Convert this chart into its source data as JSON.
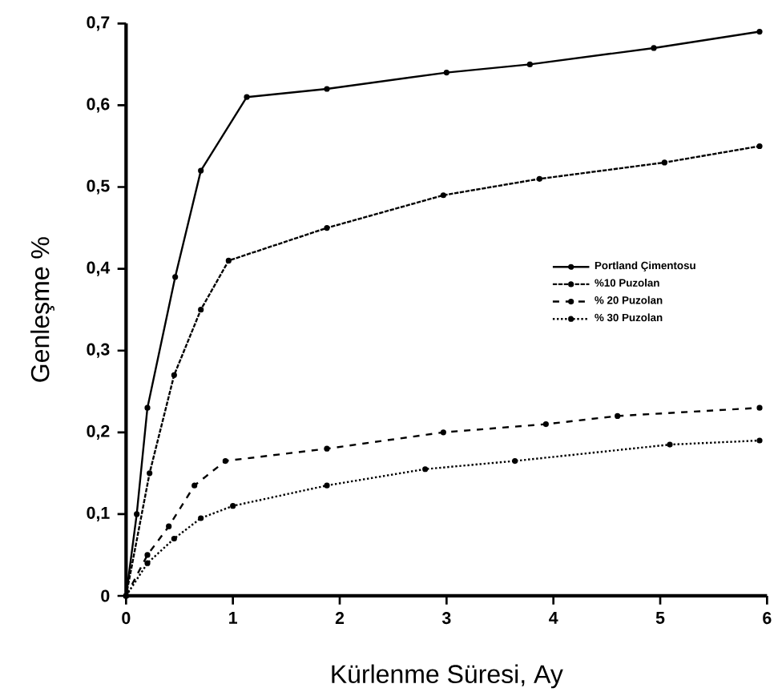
{
  "chart_data": {
    "type": "line",
    "xlabel": "Kürlenme Süresi, Ay",
    "ylabel": "Genleşme %",
    "xlim": [
      0,
      6
    ],
    "xticks": [
      0,
      1,
      2,
      3,
      4,
      5,
      6
    ],
    "ylim": [
      0,
      0.7
    ],
    "yticks": [
      0,
      {
        "value": 0.1,
        "label": "0,1"
      },
      {
        "value": 0.2,
        "label": "0,2"
      },
      {
        "value": 0.3,
        "label": "0,3"
      },
      {
        "value": 0.4,
        "label": "0,4"
      },
      {
        "value": 0.5,
        "label": "0,5"
      },
      {
        "value": 0.6,
        "label": "0,6"
      },
      {
        "value": 0.7,
        "label": "0,7"
      }
    ],
    "grid": false,
    "legend": "right",
    "marker": "circle",
    "series": [
      {
        "name": "Portland Çimentosu",
        "color": "#000000",
        "line_style": "solid",
        "x": [
          0,
          0.1,
          0.2,
          0.46,
          0.7,
          1.13,
          1.88,
          3.0,
          3.78,
          4.94,
          5.93
        ],
        "values": [
          0,
          0.1,
          0.23,
          0.39,
          0.52,
          0.61,
          0.62,
          0.64,
          0.65,
          0.67,
          0.69
        ]
      },
      {
        "name": "%10 Puzolan",
        "color": "#000000",
        "line_style": "dashdotted",
        "x": [
          0,
          0.22,
          0.45,
          0.7,
          0.96,
          1.88,
          2.97,
          3.87,
          5.04,
          5.93
        ],
        "values": [
          0,
          0.15,
          0.27,
          0.35,
          0.41,
          0.45,
          0.49,
          0.51,
          0.53,
          0.55
        ]
      },
      {
        "name": "% 20 Puzolan",
        "color": "#000000",
        "line_style": "dashed",
        "x": [
          0,
          0.2,
          0.4,
          0.64,
          0.93,
          1.88,
          2.97,
          3.93,
          4.6,
          5.93
        ],
        "values": [
          0,
          0.05,
          0.085,
          0.135,
          0.165,
          0.18,
          0.2,
          0.21,
          0.22,
          0.23
        ]
      },
      {
        "name": "% 30 Puzolan",
        "color": "#000000",
        "line_style": "dotted",
        "x": [
          0,
          0.2,
          0.45,
          0.7,
          1.0,
          1.88,
          2.8,
          3.64,
          5.09,
          5.93
        ],
        "values": [
          0,
          0.04,
          0.07,
          0.095,
          0.11,
          0.135,
          0.155,
          0.165,
          0.185,
          0.19
        ]
      }
    ]
  }
}
